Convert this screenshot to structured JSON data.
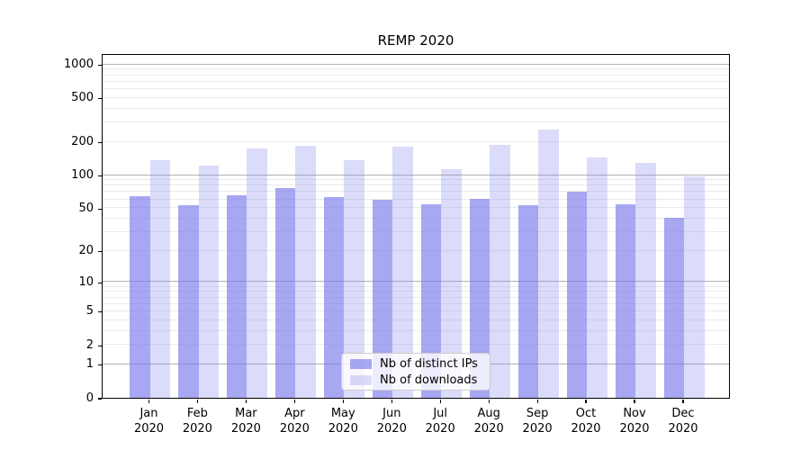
{
  "chart_data": {
    "type": "bar",
    "title": "REMP 2020",
    "categories": [
      "Jan",
      "Feb",
      "Mar",
      "Apr",
      "May",
      "Jun",
      "Jul",
      "Aug",
      "Sep",
      "Oct",
      "Nov",
      "Dec"
    ],
    "category_year": "2020",
    "series": [
      {
        "name": "Nb of distinct IPs",
        "color": "rgba(122,122,235,0.66)",
        "values": [
          64,
          53,
          66,
          76,
          63,
          60,
          54,
          61,
          53,
          70,
          54,
          41
        ]
      },
      {
        "name": "Nb of downloads",
        "color": "rgba(122,122,235,0.27)",
        "values": [
          137,
          123,
          173,
          185,
          137,
          181,
          114,
          188,
          260,
          145,
          128,
          97
        ]
      }
    ],
    "yscale": "log1p",
    "ylim": [
      0,
      1264
    ],
    "ytick_values": [
      0,
      1,
      2,
      5,
      10,
      20,
      50,
      100,
      200,
      500,
      1000
    ],
    "ytick_labels": [
      "0",
      "1",
      "2",
      "5",
      "10",
      "20",
      "50",
      "100",
      "200",
      "500",
      "1000"
    ],
    "grid_major": [
      1,
      10,
      100,
      1000
    ],
    "grid_minor": [
      2,
      3,
      4,
      5,
      6,
      7,
      8,
      9,
      20,
      30,
      40,
      50,
      60,
      70,
      80,
      90,
      200,
      300,
      400,
      500,
      600,
      700,
      800,
      900
    ],
    "legend_position": "lower center",
    "grid": "on",
    "colors": {
      "bar_fill_dark_on_white": "#a7a7f2",
      "bar_fill_light_on_white": "#dbdbf8",
      "grid_major": "#b2b2b2",
      "grid_minor": "#ebebeb",
      "axis": "#000000"
    }
  }
}
